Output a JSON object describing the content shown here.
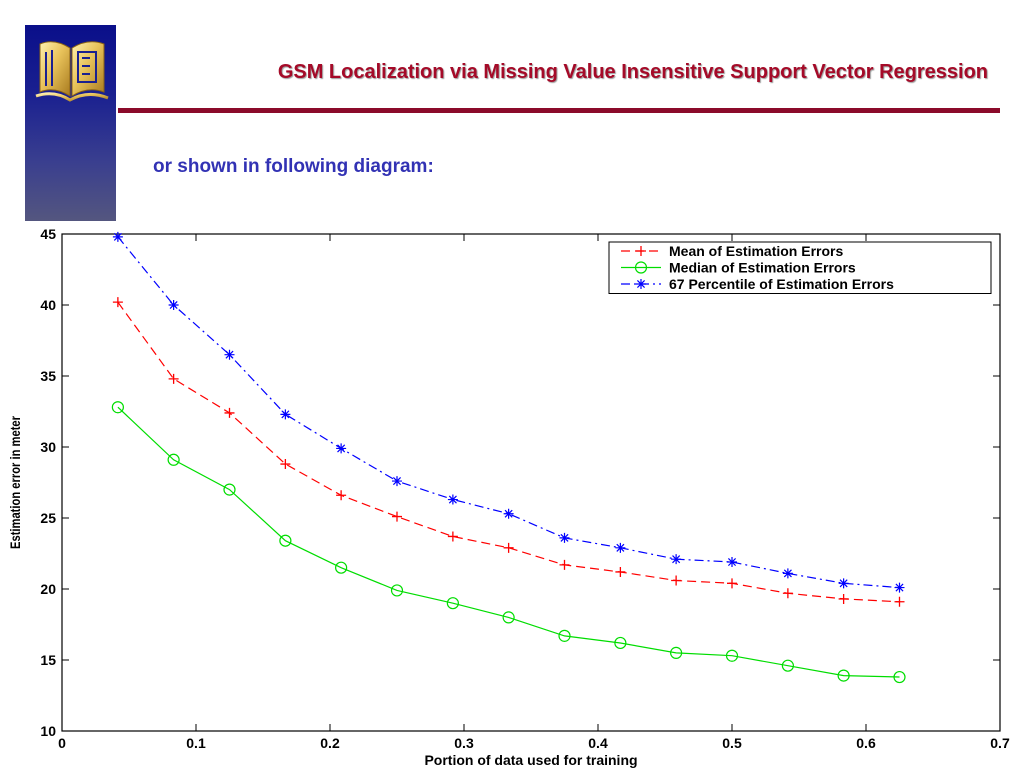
{
  "slide": {
    "title": "GSM Localization via Missing Value Insensitive Support Vector Regression",
    "subtitle": "or shown in following diagram:",
    "logo_icon": "book-emblem-icon"
  },
  "colors": {
    "title": "#a50a28",
    "title_rule": "#8b0a2a",
    "subtitle": "#3232b4",
    "sidebar": "#1a2090"
  },
  "chart_data": {
    "type": "line",
    "title": "",
    "xlabel": "Portion of data used for training",
    "ylabel": "Estimation error in meter",
    "xlim": [
      0,
      0.7
    ],
    "ylim": [
      10,
      45
    ],
    "xticks": [
      0,
      0.1,
      0.2,
      0.3,
      0.4,
      0.5,
      0.6,
      0.7
    ],
    "xtick_labels": [
      "0",
      "0.1",
      "0.2",
      "0.3",
      "0.4",
      "0.5",
      "0.6",
      "0.7"
    ],
    "yticks": [
      10,
      15,
      20,
      25,
      30,
      35,
      40,
      45
    ],
    "ytick_labels": [
      "10",
      "15",
      "20",
      "25",
      "30",
      "35",
      "40",
      "45"
    ],
    "grid": false,
    "legend_position": "top-right",
    "x": [
      0.0417,
      0.0833,
      0.125,
      0.1667,
      0.2083,
      0.25,
      0.2917,
      0.3333,
      0.375,
      0.4167,
      0.4583,
      0.5,
      0.5417,
      0.5833,
      0.625
    ],
    "series": [
      {
        "name": "Mean of Estimation Errors",
        "color": "#ff0000",
        "line_style": "dashed",
        "marker": "plus",
        "values": [
          40.2,
          34.8,
          32.4,
          28.8,
          26.6,
          25.1,
          23.7,
          22.9,
          21.7,
          21.2,
          20.6,
          20.4,
          19.7,
          19.3,
          19.1
        ]
      },
      {
        "name": "Median of Estimation Errors",
        "color": "#00dd00",
        "line_style": "solid",
        "marker": "circle",
        "values": [
          32.8,
          29.1,
          27.0,
          23.4,
          21.5,
          19.9,
          19.0,
          18.0,
          16.7,
          16.2,
          15.5,
          15.3,
          14.6,
          13.9,
          13.8
        ]
      },
      {
        "name": "67 Percentile of Estimation Errors",
        "color": "#0000ff",
        "line_style": "dash-dot",
        "marker": "asterisk",
        "values": [
          44.8,
          40.0,
          36.5,
          32.3,
          29.9,
          27.6,
          26.3,
          25.3,
          23.6,
          22.9,
          22.1,
          21.9,
          21.1,
          20.4,
          20.1
        ]
      }
    ]
  }
}
